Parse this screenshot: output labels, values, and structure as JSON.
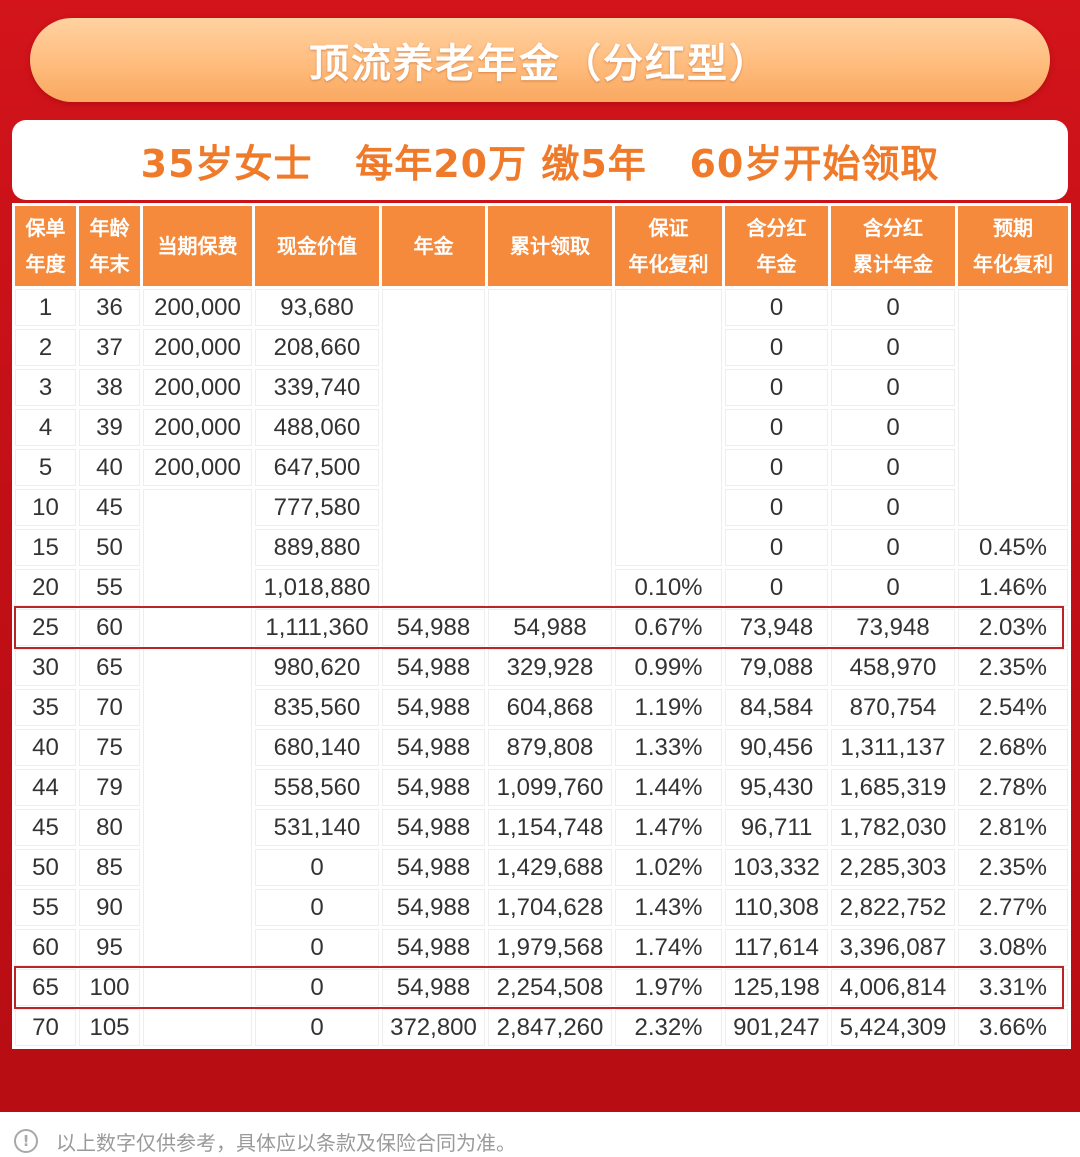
{
  "title": "顶流养老年金（分红型）",
  "subtitle": "35岁女士   每年20万 缴5年   60岁开始领取",
  "table": {
    "headers": [
      [
        "保单",
        "年度"
      ],
      [
        "年龄",
        "年末"
      ],
      [
        "当期保费"
      ],
      [
        "现金价值"
      ],
      [
        "年金"
      ],
      [
        "累计领取"
      ],
      [
        "保证",
        "年化复利"
      ],
      [
        "含分红",
        "年金"
      ],
      [
        "含分红",
        "累计年金"
      ],
      [
        "预期",
        "年化复利"
      ]
    ],
    "rows": [
      [
        "1",
        "36",
        "200,000",
        "93,680",
        "",
        "",
        "",
        "0",
        "0",
        ""
      ],
      [
        "2",
        "37",
        "200,000",
        "208,660",
        "",
        "",
        "",
        "0",
        "0",
        ""
      ],
      [
        "3",
        "38",
        "200,000",
        "339,740",
        "",
        "",
        "",
        "0",
        "0",
        ""
      ],
      [
        "4",
        "39",
        "200,000",
        "488,060",
        "",
        "",
        "",
        "0",
        "0",
        ""
      ],
      [
        "5",
        "40",
        "200,000",
        "647,500",
        "",
        "",
        "",
        "0",
        "0",
        ""
      ],
      [
        "10",
        "45",
        "",
        "777,580",
        "",
        "",
        "",
        "0",
        "0",
        ""
      ],
      [
        "15",
        "50",
        "",
        "889,880",
        "",
        "",
        "",
        "0",
        "0",
        "0.45%"
      ],
      [
        "20",
        "55",
        "",
        "1,018,880",
        "",
        "",
        "0.10%",
        "0",
        "0",
        "1.46%"
      ],
      [
        "25",
        "60",
        "",
        "1,111,360",
        "54,988",
        "54,988",
        "0.67%",
        "73,948",
        "73,948",
        "2.03%"
      ],
      [
        "30",
        "65",
        "",
        "980,620",
        "54,988",
        "329,928",
        "0.99%",
        "79,088",
        "458,970",
        "2.35%"
      ],
      [
        "35",
        "70",
        "",
        "835,560",
        "54,988",
        "604,868",
        "1.19%",
        "84,584",
        "870,754",
        "2.54%"
      ],
      [
        "40",
        "75",
        "",
        "680,140",
        "54,988",
        "879,808",
        "1.33%",
        "90,456",
        "1,311,137",
        "2.68%"
      ],
      [
        "44",
        "79",
        "",
        "558,560",
        "54,988",
        "1,099,760",
        "1.44%",
        "95,430",
        "1,685,319",
        "2.78%"
      ],
      [
        "45",
        "80",
        "",
        "531,140",
        "54,988",
        "1,154,748",
        "1.47%",
        "96,711",
        "1,782,030",
        "2.81%"
      ],
      [
        "50",
        "85",
        "",
        "0",
        "54,988",
        "1,429,688",
        "1.02%",
        "103,332",
        "2,285,303",
        "2.35%"
      ],
      [
        "55",
        "90",
        "",
        "0",
        "54,988",
        "1,704,628",
        "1.43%",
        "110,308",
        "2,822,752",
        "2.77%"
      ],
      [
        "60",
        "95",
        "",
        "0",
        "54,988",
        "1,979,568",
        "1.74%",
        "117,614",
        "3,396,087",
        "3.08%"
      ],
      [
        "65",
        "100",
        "",
        "0",
        "54,988",
        "2,254,508",
        "1.97%",
        "125,198",
        "4,006,814",
        "3.31%"
      ],
      [
        "70",
        "105",
        "",
        "0",
        "372,800",
        "2,847,260",
        "2.32%",
        "901,247",
        "5,424,309",
        "3.66%"
      ]
    ],
    "highlight_rows": [
      8,
      17
    ],
    "colors": {
      "frame_red": "#c8121a",
      "header_orange": "#f58a3c",
      "subtitle_orange": "#ef7a2a",
      "highlight_border": "#b8262a"
    }
  },
  "footer": {
    "icon": "info-icon",
    "text": "以上数字仅供参考，具体应以条款及保险合同为准。"
  }
}
